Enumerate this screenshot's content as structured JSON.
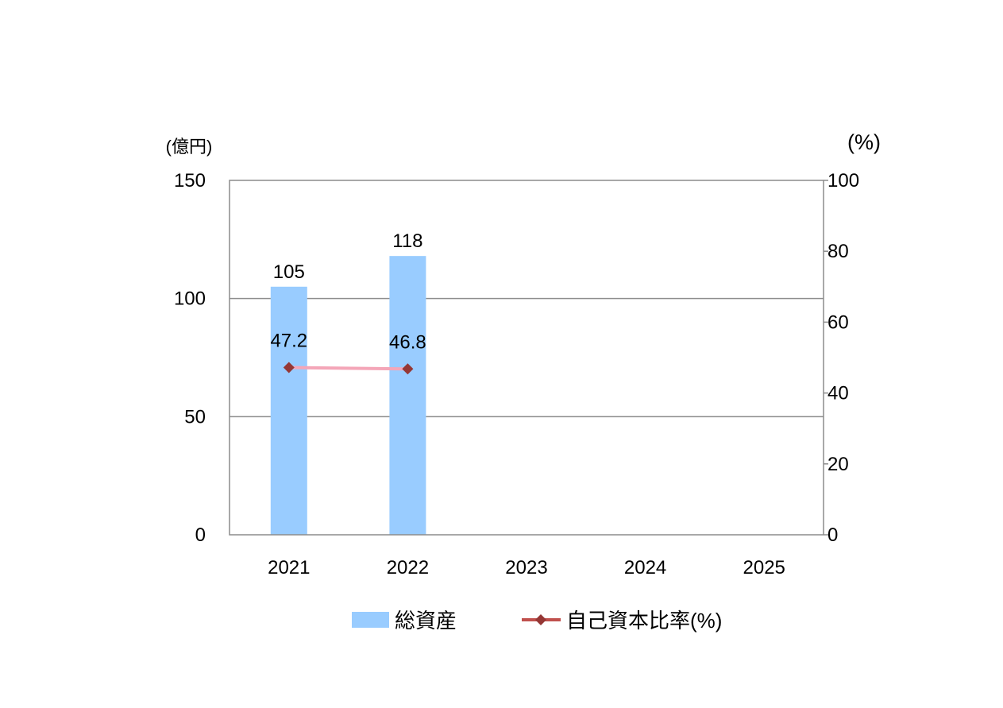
{
  "chart_data": {
    "type": "bar",
    "categories": [
      "2021",
      "2022",
      "2023",
      "2024",
      "2025"
    ],
    "series": [
      {
        "name": "総資産",
        "type": "bar",
        "axis": "left",
        "color": "#99CCFF",
        "values": [
          105,
          118,
          null,
          null,
          null
        ]
      },
      {
        "name": "自己資本比率(%)",
        "type": "line",
        "axis": "right",
        "line_color": "#F4A6B8",
        "legend_line_color": "#C0504D",
        "marker_color": "#953735",
        "marker": "diamond",
        "values": [
          47.2,
          46.8,
          null,
          null,
          null
        ]
      }
    ],
    "y_left": {
      "unit_label": "(億円)",
      "range": [
        0,
        150
      ],
      "ticks": [
        "0",
        "50",
        "100",
        "150"
      ]
    },
    "y_right": {
      "unit_label": "(%)",
      "range": [
        0,
        100
      ],
      "ticks": [
        "0",
        "20",
        "40",
        "60",
        "80",
        "100"
      ]
    },
    "gridlines": "horizontal-left-axis",
    "legend_position": "bottom"
  }
}
